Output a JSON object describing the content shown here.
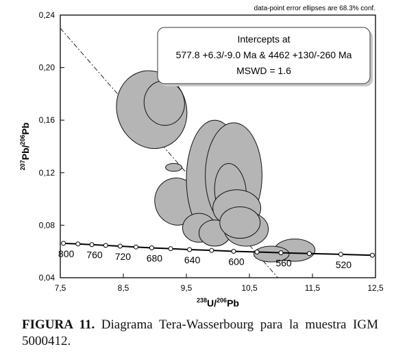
{
  "chart_data": {
    "type": "scatter",
    "subtype": "tera-wasserburg concordia with error ellipses",
    "note_top_right": "data-point error ellipses are 68.3% conf.",
    "xlabel": {
      "sup": "238",
      "main": "U/",
      "sup2": "206",
      "main2": "Pb"
    },
    "ylabel": {
      "sup": "207",
      "main": "Pb/",
      "sup2": "206",
      "main2": "Pb"
    },
    "xlim": [
      7.5,
      12.5
    ],
    "ylim": [
      0.04,
      0.24
    ],
    "x_ticks": [
      "7,5",
      "8,5",
      "9,5",
      "10,5",
      "11,5",
      "12,5"
    ],
    "x_tick_values": [
      7.5,
      8.5,
      9.5,
      10.5,
      11.5,
      12.5
    ],
    "y_ticks": [
      "0,04",
      "0,08",
      "0,12",
      "0,16",
      "0,20",
      "0,24"
    ],
    "y_tick_values": [
      0.04,
      0.08,
      0.12,
      0.16,
      0.2,
      0.24
    ],
    "grid": false,
    "annotation_box": {
      "line1": "Intercepts at",
      "line2": "577.8  +6.3/-9.0  Ma & 4462  +130/-260  Ma",
      "line3": "MSWD = 1.6"
    },
    "concordia_ages": [
      {
        "label": "800",
        "x": 7.55,
        "y": 0.0662
      },
      {
        "label": "760",
        "x": 8.0,
        "y": 0.0652
      },
      {
        "label": "720",
        "x": 8.45,
        "y": 0.064
      },
      {
        "label": "680",
        "x": 8.95,
        "y": 0.0627
      },
      {
        "label": "640",
        "x": 9.55,
        "y": 0.0614
      },
      {
        "label": "600",
        "x": 10.25,
        "y": 0.0601
      },
      {
        "label": "560",
        "x": 11.0,
        "y": 0.059
      },
      {
        "label": "520",
        "x": 11.95,
        "y": 0.0578
      }
    ],
    "concordia_markers": [
      {
        "x": 7.55,
        "y": 0.0662
      },
      {
        "x": 7.78,
        "y": 0.0657
      },
      {
        "x": 8.0,
        "y": 0.0652
      },
      {
        "x": 8.22,
        "y": 0.0646
      },
      {
        "x": 8.45,
        "y": 0.064
      },
      {
        "x": 8.7,
        "y": 0.0634
      },
      {
        "x": 8.95,
        "y": 0.0627
      },
      {
        "x": 9.25,
        "y": 0.0621
      },
      {
        "x": 9.55,
        "y": 0.0614
      },
      {
        "x": 9.9,
        "y": 0.0608
      },
      {
        "x": 10.25,
        "y": 0.0601
      },
      {
        "x": 10.62,
        "y": 0.0596
      },
      {
        "x": 11.0,
        "y": 0.059
      },
      {
        "x": 11.45,
        "y": 0.0584
      },
      {
        "x": 11.95,
        "y": 0.0578
      },
      {
        "x": 12.45,
        "y": 0.0571
      }
    ],
    "discordia_line": {
      "x1": 7.5,
      "y1": 0.23,
      "x2": 10.95,
      "y2": 0.04
    },
    "ellipses": [
      {
        "cx": 8.95,
        "cy": 0.168,
        "rx": 0.55,
        "ry": 0.03,
        "angle": 20
      },
      {
        "cx": 9.15,
        "cy": 0.173,
        "rx": 0.32,
        "ry": 0.017,
        "angle": 10
      },
      {
        "cx": 9.35,
        "cy": 0.098,
        "rx": 0.35,
        "ry": 0.018,
        "angle": 15
      },
      {
        "cx": 9.3,
        "cy": 0.124,
        "rx": 0.13,
        "ry": 0.003,
        "angle": 0
      },
      {
        "cx": 9.95,
        "cy": 0.115,
        "rx": 0.45,
        "ry": 0.045,
        "angle": 0
      },
      {
        "cx": 10.25,
        "cy": 0.118,
        "rx": 0.45,
        "ry": 0.04,
        "angle": 0
      },
      {
        "cx": 10.2,
        "cy": 0.105,
        "rx": 0.25,
        "ry": 0.022,
        "angle": 5
      },
      {
        "cx": 10.3,
        "cy": 0.093,
        "rx": 0.38,
        "ry": 0.014,
        "angle": 0
      },
      {
        "cx": 9.7,
        "cy": 0.078,
        "rx": 0.26,
        "ry": 0.011,
        "angle": 0
      },
      {
        "cx": 9.95,
        "cy": 0.074,
        "rx": 0.25,
        "ry": 0.01,
        "angle": 0
      },
      {
        "cx": 10.45,
        "cy": 0.077,
        "rx": 0.35,
        "ry": 0.013,
        "angle": 0
      },
      {
        "cx": 10.35,
        "cy": 0.082,
        "rx": 0.32,
        "ry": 0.012,
        "angle": 0
      },
      {
        "cx": 11.22,
        "cy": 0.061,
        "rx": 0.32,
        "ry": 0.0085,
        "angle": 0
      },
      {
        "cx": 10.85,
        "cy": 0.058,
        "rx": 0.28,
        "ry": 0.006,
        "angle": 0
      }
    ]
  },
  "caption": {
    "bold": "FIGURA 11.",
    "text": " Diagrama Tera-Wasserbourg para la muestra IGM 5000412."
  }
}
